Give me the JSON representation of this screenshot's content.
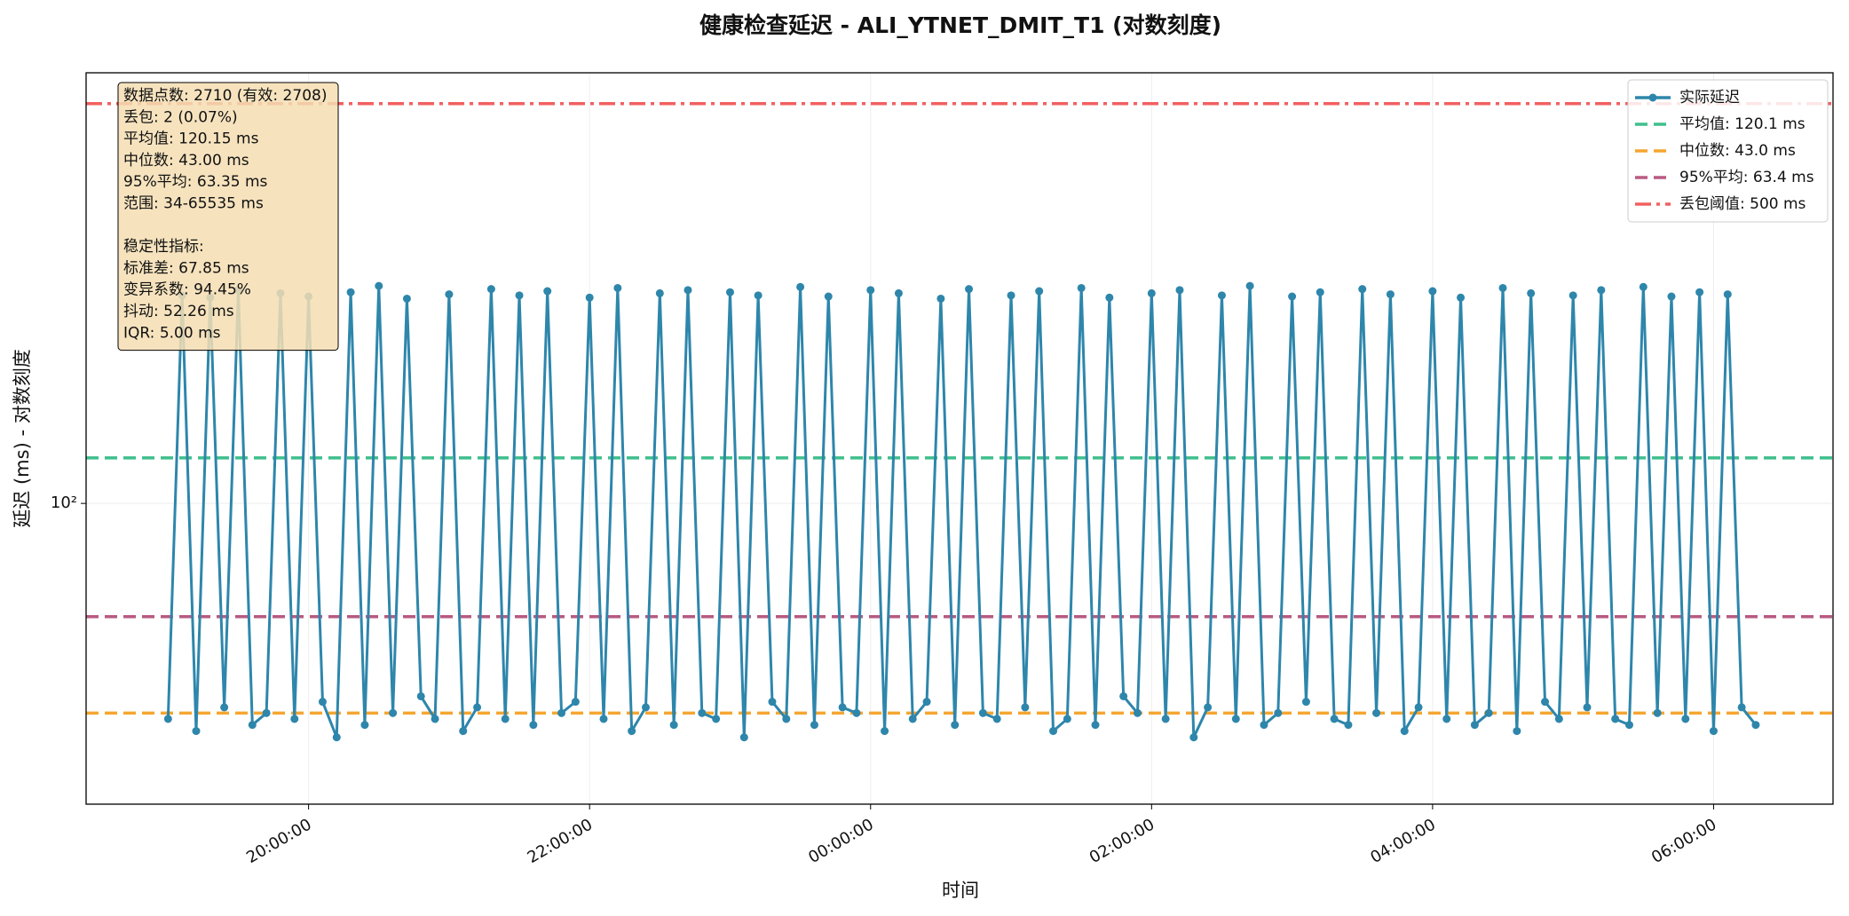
{
  "chart_data": {
    "type": "line",
    "title": "健康检查延迟 - ALI_YTNET_DMIT_T1 (对数刻度)",
    "x_label": "时间",
    "y_label": "延迟 (ms) - 对数刻度",
    "log_y": true,
    "grid": true,
    "legend": "upper right",
    "x": [
      "19:00:00",
      "19:06:00",
      "19:12:00",
      "19:18:00",
      "19:24:00",
      "19:30:00",
      "19:36:00",
      "19:42:00",
      "19:48:00",
      "19:54:00",
      "20:00:00",
      "20:06:00",
      "20:12:00",
      "20:18:00",
      "20:24:00",
      "20:30:00",
      "20:36:00",
      "20:42:00",
      "20:48:00",
      "20:54:00",
      "21:00:00",
      "21:06:00",
      "21:12:00",
      "21:18:00",
      "21:24:00",
      "21:30:00",
      "21:36:00",
      "21:42:00",
      "21:48:00",
      "21:54:00",
      "22:00:00",
      "22:06:00",
      "22:12:00",
      "22:18:00",
      "22:24:00",
      "22:30:00",
      "22:36:00",
      "22:42:00",
      "22:48:00",
      "22:54:00",
      "23:00:00",
      "23:06:00",
      "23:12:00",
      "23:18:00",
      "23:24:00",
      "23:30:00",
      "23:36:00",
      "23:42:00",
      "23:48:00",
      "23:54:00",
      "00:00:00",
      "00:06:00",
      "00:12:00",
      "00:18:00",
      "00:24:00",
      "00:30:00",
      "00:36:00",
      "00:42:00",
      "00:48:00",
      "00:54:00",
      "01:00:00",
      "01:06:00",
      "01:12:00",
      "01:18:00",
      "01:24:00",
      "01:30:00",
      "01:36:00",
      "01:42:00",
      "01:48:00",
      "01:54:00",
      "02:00:00",
      "02:06:00",
      "02:12:00",
      "02:18:00",
      "02:24:00",
      "02:30:00",
      "02:36:00",
      "02:42:00",
      "02:48:00",
      "02:54:00",
      "03:00:00",
      "03:06:00",
      "03:12:00",
      "03:18:00",
      "03:24:00",
      "03:30:00",
      "03:36:00",
      "03:42:00",
      "03:48:00",
      "03:54:00",
      "04:00:00",
      "04:06:00",
      "04:12:00",
      "04:18:00",
      "04:24:00",
      "04:30:00",
      "04:36:00",
      "04:42:00",
      "04:48:00",
      "04:54:00",
      "05:00:00",
      "05:06:00",
      "05:12:00",
      "05:18:00",
      "05:24:00",
      "05:30:00",
      "05:36:00",
      "05:42:00",
      "05:48:00",
      "05:54:00",
      "06:00:00",
      "06:06:00",
      "06:12:00",
      "06:18:00"
    ],
    "series": [
      {
        "name": "实际延迟",
        "color": "#2e86ab",
        "values": [
          42,
          231,
          40,
          229,
          44,
          236,
          41,
          43,
          233,
          42,
          230,
          45,
          39,
          234,
          41,
          240,
          43,
          228,
          46,
          42,
          232,
          40,
          44,
          237,
          42,
          231,
          41,
          235,
          43,
          45,
          229,
          42,
          238,
          40,
          44,
          233,
          41,
          236,
          43,
          42,
          234,
          39,
          231,
          45,
          42,
          239,
          41,
          230,
          44,
          43,
          236,
          40,
          233,
          42,
          45,
          228,
          41,
          237,
          43,
          42,
          231,
          44,
          235,
          40,
          42,
          238,
          41,
          229,
          46,
          43,
          233,
          42,
          236,
          39,
          44,
          231,
          42,
          240,
          41,
          43,
          230,
          45,
          234,
          42,
          41,
          237,
          43,
          232,
          40,
          44,
          235,
          42,
          229,
          41,
          43,
          238,
          40,
          233,
          45,
          42,
          231,
          44,
          236,
          42,
          41,
          239,
          43,
          230,
          42,
          234,
          40,
          232,
          44,
          41
        ]
      }
    ],
    "reference_lines": [
      {
        "name": "平均值: 120.1 ms",
        "value": 120.1,
        "color": "#3fbf8c",
        "dash": "dash"
      },
      {
        "name": "中位数: 43.0 ms",
        "value": 43.0,
        "color": "#f5a631",
        "dash": "dash"
      },
      {
        "name": "95%平均: 63.4 ms",
        "value": 63.4,
        "color": "#b85a82",
        "dash": "dash"
      },
      {
        "name": "丢包阈值: 500 ms",
        "value": 500,
        "color": "#f26060",
        "dash": "dashdot"
      }
    ],
    "xlim": [
      "18:25:00",
      "06:51:00"
    ],
    "xticks": [
      "20:00:00",
      "22:00:00",
      "00:00:00",
      "02:00:00",
      "04:00:00",
      "06:00:00"
    ],
    "ylim": [
      29.8,
      566
    ],
    "yticks": [
      {
        "value": 100,
        "label": "10²"
      }
    ],
    "stats_box": {
      "summary": [
        "数据点数: 2710 (有效: 2708)",
        "丢包: 2 (0.07%)",
        "平均值: 120.15 ms",
        "中位数: 43.00 ms",
        "95%平均: 63.35 ms",
        "范围: 34-65535 ms"
      ],
      "stability_title": "稳定性指标:",
      "stability": [
        "标准差: 67.85 ms",
        "变异系数: 94.45%",
        "抖动: 52.26 ms",
        "IQR: 5.00 ms"
      ]
    }
  }
}
